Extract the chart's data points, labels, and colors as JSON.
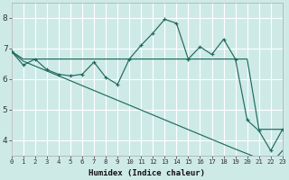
{
  "xlabel": "Humidex (Indice chaleur)",
  "bg_color": "#ceeae7",
  "grid_color": "#ffffff",
  "line_color": "#1e6b5e",
  "x_data": [
    0,
    1,
    2,
    3,
    4,
    5,
    6,
    7,
    8,
    9,
    10,
    11,
    12,
    13,
    14,
    15,
    16,
    17,
    18,
    19,
    20,
    21,
    22,
    23
  ],
  "y_main": [
    6.9,
    6.45,
    6.65,
    6.3,
    6.15,
    6.1,
    6.15,
    6.55,
    6.05,
    5.82,
    6.65,
    7.1,
    7.5,
    7.95,
    7.82,
    6.65,
    7.05,
    6.8,
    7.3,
    6.65,
    4.65,
    4.3,
    3.65,
    4.35
  ],
  "y_upper": [
    6.9,
    6.65,
    6.65,
    6.65,
    6.65,
    6.65,
    6.65,
    6.65,
    6.65,
    6.65,
    6.65,
    6.65,
    6.65,
    6.65,
    6.65,
    6.65,
    6.65,
    6.65,
    6.65,
    6.65,
    6.65,
    4.35,
    4.35,
    4.35
  ],
  "y_lower": [
    6.9,
    6.58,
    6.42,
    6.26,
    6.1,
    5.94,
    5.78,
    5.62,
    5.46,
    5.3,
    5.14,
    4.98,
    4.82,
    4.66,
    4.5,
    4.34,
    4.18,
    4.02,
    3.86,
    3.7,
    3.55,
    3.39,
    3.23,
    3.65
  ],
  "ylim": [
    3.5,
    8.5
  ],
  "xlim": [
    0,
    23
  ],
  "yticks": [
    4,
    5,
    6,
    7,
    8
  ],
  "xticks": [
    0,
    1,
    2,
    3,
    4,
    5,
    6,
    7,
    8,
    9,
    10,
    11,
    12,
    13,
    14,
    15,
    16,
    17,
    18,
    19,
    20,
    21,
    22,
    23
  ],
  "xlabel_fontsize": 6.5,
  "tick_fontsize_x": 5.2,
  "tick_fontsize_y": 6.5
}
